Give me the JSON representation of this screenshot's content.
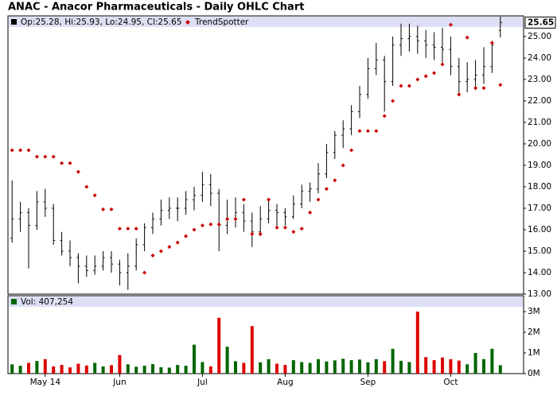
{
  "chart_data": {
    "type": "ohlc",
    "title": "ANAC - Anacor Pharmaceuticals - Daily OHLC Chart",
    "legend_text": "Op:25.28, Hi:25.93, Lo:24.95, Cl:25.65",
    "categories": [
      null,
      null,
      null,
      null,
      "May 14",
      null,
      null,
      null,
      null,
      null,
      null,
      null,
      null,
      "Jun",
      null,
      null,
      null,
      null,
      null,
      null,
      null,
      null,
      null,
      "Jul",
      null,
      null,
      null,
      null,
      null,
      null,
      null,
      null,
      null,
      "Aug",
      null,
      null,
      null,
      null,
      null,
      null,
      null,
      null,
      null,
      "Sep",
      null,
      null,
      null,
      null,
      null,
      null,
      null,
      null,
      null,
      "Oct",
      null,
      null,
      null,
      null,
      null,
      null
    ],
    "open": [
      15.6,
      16.5,
      16.8,
      16.2,
      17.3,
      17.0,
      15.5,
      15.0,
      14.7,
      14.3,
      14.1,
      14.3,
      14.7,
      14.4,
      14.0,
      14.3,
      15.3,
      16.1,
      16.5,
      16.9,
      17.0,
      17.0,
      17.4,
      17.6,
      18.1,
      17.7,
      16.2,
      16.5,
      16.8,
      16.4,
      15.9,
      16.5,
      16.9,
      16.8,
      16.6,
      17.2,
      17.8,
      17.9,
      18.6,
      19.6,
      20.4,
      20.7,
      21.5,
      22.3,
      23.5,
      23.9,
      22.9,
      24.6,
      24.9,
      25.0,
      24.8,
      24.6,
      24.5,
      24.4,
      23.6,
      22.9,
      23.0,
      23.2,
      23.6,
      25.28
    ],
    "high": [
      18.3,
      17.3,
      17.0,
      17.8,
      17.9,
      17.2,
      15.9,
      15.5,
      14.9,
      14.8,
      14.8,
      15.0,
      15.0,
      14.6,
      14.9,
      15.6,
      16.3,
      16.8,
      17.4,
      17.5,
      17.5,
      17.8,
      18.0,
      18.7,
      18.6,
      17.9,
      17.4,
      17.5,
      17.2,
      16.8,
      17.1,
      17.4,
      17.2,
      17.0,
      17.6,
      18.1,
      18.2,
      19.1,
      20.0,
      20.6,
      21.1,
      21.8,
      22.7,
      24.0,
      24.7,
      24.1,
      25.0,
      25.6,
      25.6,
      25.5,
      25.3,
      25.2,
      25.4,
      25.0,
      24.0,
      23.8,
      23.9,
      24.5,
      24.8,
      25.93
    ],
    "low": [
      15.4,
      15.9,
      14.2,
      16.0,
      16.6,
      15.3,
      14.8,
      14.3,
      13.5,
      13.8,
      13.9,
      14.1,
      14.0,
      13.4,
      13.2,
      14.1,
      15.0,
      15.8,
      16.2,
      16.5,
      16.4,
      16.7,
      16.9,
      17.3,
      17.1,
      15.0,
      15.8,
      16.1,
      15.9,
      15.2,
      15.7,
      16.3,
      16.1,
      16.2,
      16.5,
      17.0,
      17.3,
      17.7,
      18.4,
      19.3,
      19.8,
      20.4,
      21.2,
      22.1,
      23.2,
      21.5,
      22.7,
      24.1,
      24.3,
      24.2,
      24.0,
      23.9,
      23.8,
      23.2,
      22.3,
      22.4,
      22.5,
      22.8,
      23.3,
      24.95
    ],
    "close": [
      16.5,
      16.8,
      16.2,
      17.3,
      17.0,
      15.5,
      15.0,
      14.7,
      14.3,
      14.1,
      14.3,
      14.7,
      14.4,
      14.0,
      14.3,
      15.3,
      16.1,
      16.5,
      16.9,
      17.0,
      17.0,
      17.4,
      17.6,
      18.1,
      17.7,
      16.2,
      16.5,
      16.8,
      16.4,
      15.9,
      16.5,
      16.9,
      16.8,
      16.6,
      17.2,
      17.8,
      17.9,
      18.6,
      19.6,
      20.4,
      20.7,
      21.5,
      22.3,
      23.5,
      23.9,
      22.9,
      24.6,
      24.9,
      25.0,
      24.8,
      24.6,
      24.5,
      24.4,
      23.6,
      22.9,
      23.0,
      23.2,
      23.6,
      24.6,
      25.65
    ],
    "bar_color": "#000000",
    "overlay": {
      "name": "TrendSpotter",
      "color": "#cc0000",
      "values": [
        19.7,
        19.7,
        19.7,
        19.4,
        19.4,
        19.4,
        19.1,
        19.1,
        18.7,
        18.0,
        17.6,
        16.95,
        16.95,
        16.05,
        16.05,
        16.05,
        14.0,
        14.8,
        15.0,
        15.2,
        15.4,
        15.7,
        16.0,
        16.2,
        16.25,
        16.25,
        16.5,
        16.5,
        17.4,
        15.8,
        15.8,
        17.4,
        16.1,
        16.1,
        15.9,
        16.05,
        16.8,
        17.4,
        17.9,
        18.3,
        19.0,
        19.7,
        20.6,
        20.6,
        20.6,
        21.3,
        22.0,
        22.7,
        22.7,
        23.0,
        23.15,
        23.3,
        23.7,
        25.55,
        22.3,
        24.95,
        22.6,
        22.6,
        24.7,
        22.75
      ]
    },
    "ylim": [
      13,
      25.96
    ],
    "yticks": [
      {
        "value": 13,
        "label": "13.00"
      },
      {
        "value": 14,
        "label": "14.00"
      },
      {
        "value": 15,
        "label": "15.00"
      },
      {
        "value": 16,
        "label": "16.00"
      },
      {
        "value": 17,
        "label": "17.00"
      },
      {
        "value": 18,
        "label": "18.00"
      },
      {
        "value": 19,
        "label": "19.00"
      },
      {
        "value": 20,
        "label": "20.00"
      },
      {
        "value": 21,
        "label": "21.00"
      },
      {
        "value": 22,
        "label": "22.00"
      },
      {
        "value": 23,
        "label": "23.00"
      },
      {
        "value": 24,
        "label": "24.00"
      },
      {
        "value": 25,
        "label": "25.00"
      }
    ],
    "volume": {
      "legend_text": "Vol: 407,254",
      "up_color": "#006600",
      "down_color": "#dd0000",
      "values": [
        450000,
        380000,
        520000,
        610000,
        700000,
        350000,
        420000,
        300000,
        480000,
        390000,
        520000,
        350000,
        410000,
        900000,
        450000,
        330000,
        380000,
        460000,
        310000,
        290000,
        420000,
        380000,
        1400000,
        560000,
        350000,
        2700000,
        1300000,
        600000,
        520000,
        2300000,
        550000,
        700000,
        480000,
        420000,
        650000,
        560000,
        520000,
        700000,
        590000,
        640000,
        720000,
        650000,
        680000,
        550000,
        700000,
        600000,
        1200000,
        620000,
        560000,
        3000000,
        800000,
        650000,
        780000,
        700000,
        630000,
        450000,
        1000000,
        700000,
        1200000,
        407254
      ],
      "ylim": [
        0,
        3770000
      ],
      "yticks": [
        {
          "value": 0,
          "label": "0M"
        },
        {
          "value": 1000000,
          "label": "1M"
        },
        {
          "value": 2000000,
          "label": "2M"
        },
        {
          "value": 3000000,
          "label": "3M"
        }
      ]
    }
  }
}
